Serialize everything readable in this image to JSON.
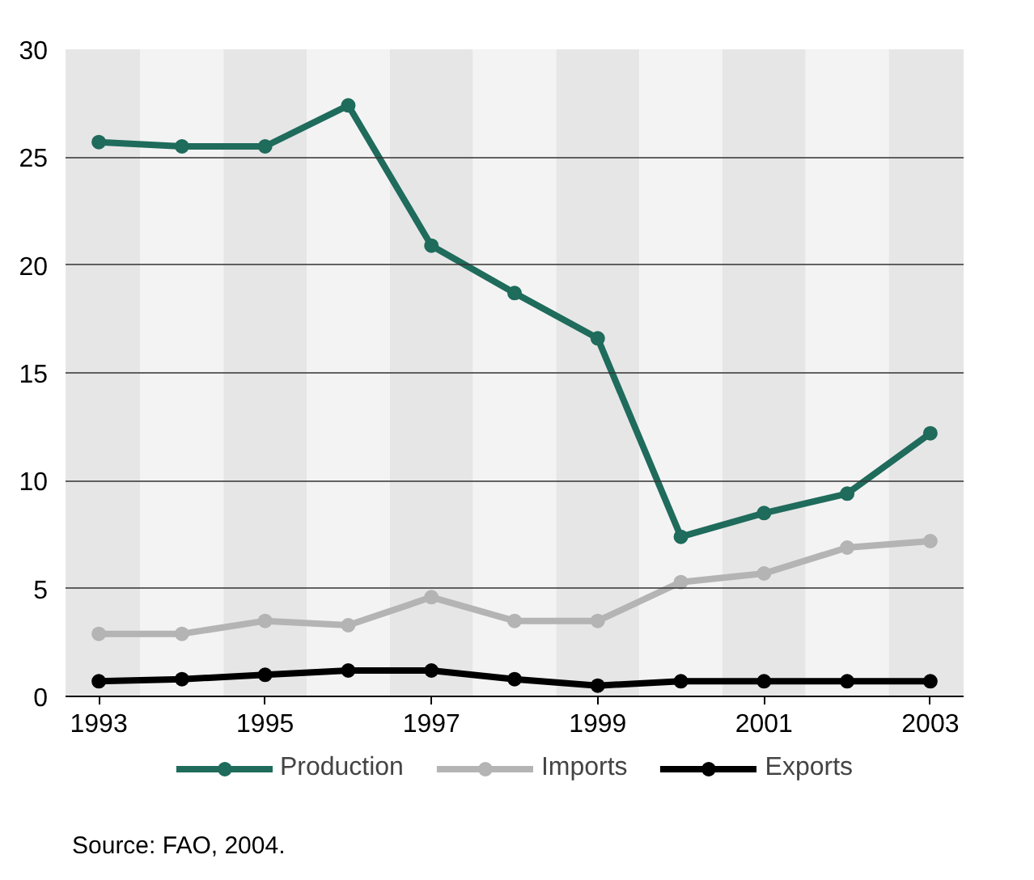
{
  "chart_data": {
    "type": "line",
    "x": [
      1993,
      1994,
      1995,
      1996,
      1997,
      1998,
      1999,
      2000,
      2001,
      2002,
      2003
    ],
    "series": [
      {
        "name": "Production",
        "color": "#1f6b5c",
        "values": [
          25.7,
          25.5,
          25.5,
          27.4,
          20.9,
          18.7,
          16.6,
          7.4,
          8.5,
          9.4,
          12.2
        ]
      },
      {
        "name": "Imports",
        "color": "#b4b4b4",
        "values": [
          2.9,
          2.9,
          3.5,
          3.3,
          4.6,
          3.5,
          3.5,
          5.3,
          5.7,
          6.9,
          7.2
        ]
      },
      {
        "name": "Exports",
        "color": "#000000",
        "values": [
          0.7,
          0.8,
          1.0,
          1.2,
          1.2,
          0.8,
          0.5,
          0.7,
          0.7,
          0.7,
          0.7
        ]
      }
    ],
    "xlim": [
      1992.6,
      2003.4
    ],
    "xticks": [
      1993,
      1995,
      1997,
      1999,
      2001,
      2003
    ],
    "ylim": [
      0,
      30
    ],
    "yticks": [
      0,
      5,
      10,
      15,
      20,
      25,
      30
    ],
    "grid": "y",
    "legend": "bottom",
    "marker": "circle",
    "line_style": "solid",
    "bands": [
      {
        "axis": "x",
        "from": 1992.6,
        "to": 1993.5,
        "color": "#e6e6e6"
      },
      {
        "axis": "x",
        "from": 1993.5,
        "to": 1994.5,
        "color": "#f3f3f3"
      },
      {
        "axis": "x",
        "from": 1994.5,
        "to": 1995.5,
        "color": "#e6e6e6"
      },
      {
        "axis": "x",
        "from": 1995.5,
        "to": 1996.5,
        "color": "#f3f3f3"
      },
      {
        "axis": "x",
        "from": 1996.5,
        "to": 1997.5,
        "color": "#e6e6e6"
      },
      {
        "axis": "x",
        "from": 1997.5,
        "to": 1998.5,
        "color": "#f3f3f3"
      },
      {
        "axis": "x",
        "from": 1998.5,
        "to": 1999.5,
        "color": "#e6e6e6"
      },
      {
        "axis": "x",
        "from": 1999.5,
        "to": 2000.5,
        "color": "#f3f3f3"
      },
      {
        "axis": "x",
        "from": 2000.5,
        "to": 2001.5,
        "color": "#e6e6e6"
      },
      {
        "axis": "x",
        "from": 2001.5,
        "to": 2002.5,
        "color": "#f3f3f3"
      },
      {
        "axis": "x",
        "from": 2002.5,
        "to": 2003.4,
        "color": "#e6e6e6"
      }
    ],
    "annotations": [
      "Source: FAO, 2004."
    ]
  }
}
